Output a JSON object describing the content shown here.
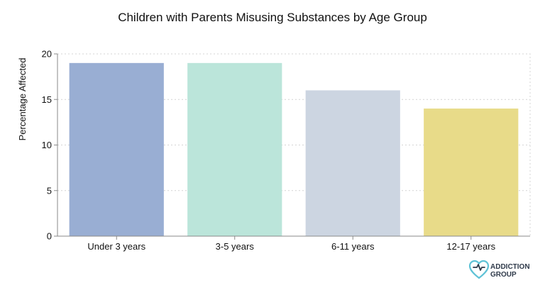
{
  "chart_data": {
    "type": "bar",
    "title": "Children with Parents Misusing Substances by Age Group",
    "xlabel": "",
    "ylabel": "Percentage Affected",
    "categories": [
      "Under 3 years",
      "3-5 years",
      "6-11 years",
      "12-17 years"
    ],
    "values": [
      19,
      19,
      16,
      14
    ],
    "ylim": [
      0,
      20
    ],
    "yticks": [
      0,
      5,
      10,
      15,
      20
    ],
    "colors": [
      "#99aed3",
      "#bbe5da",
      "#ccd5e1",
      "#e8db89"
    ],
    "grid": true,
    "legend": "none"
  },
  "branding": {
    "line1": "ADDICTION",
    "line2": "GROUP",
    "logo_icon": "heart-logo-icon",
    "logo_colors": [
      "#5ec2d6",
      "#2f3a4a"
    ]
  }
}
